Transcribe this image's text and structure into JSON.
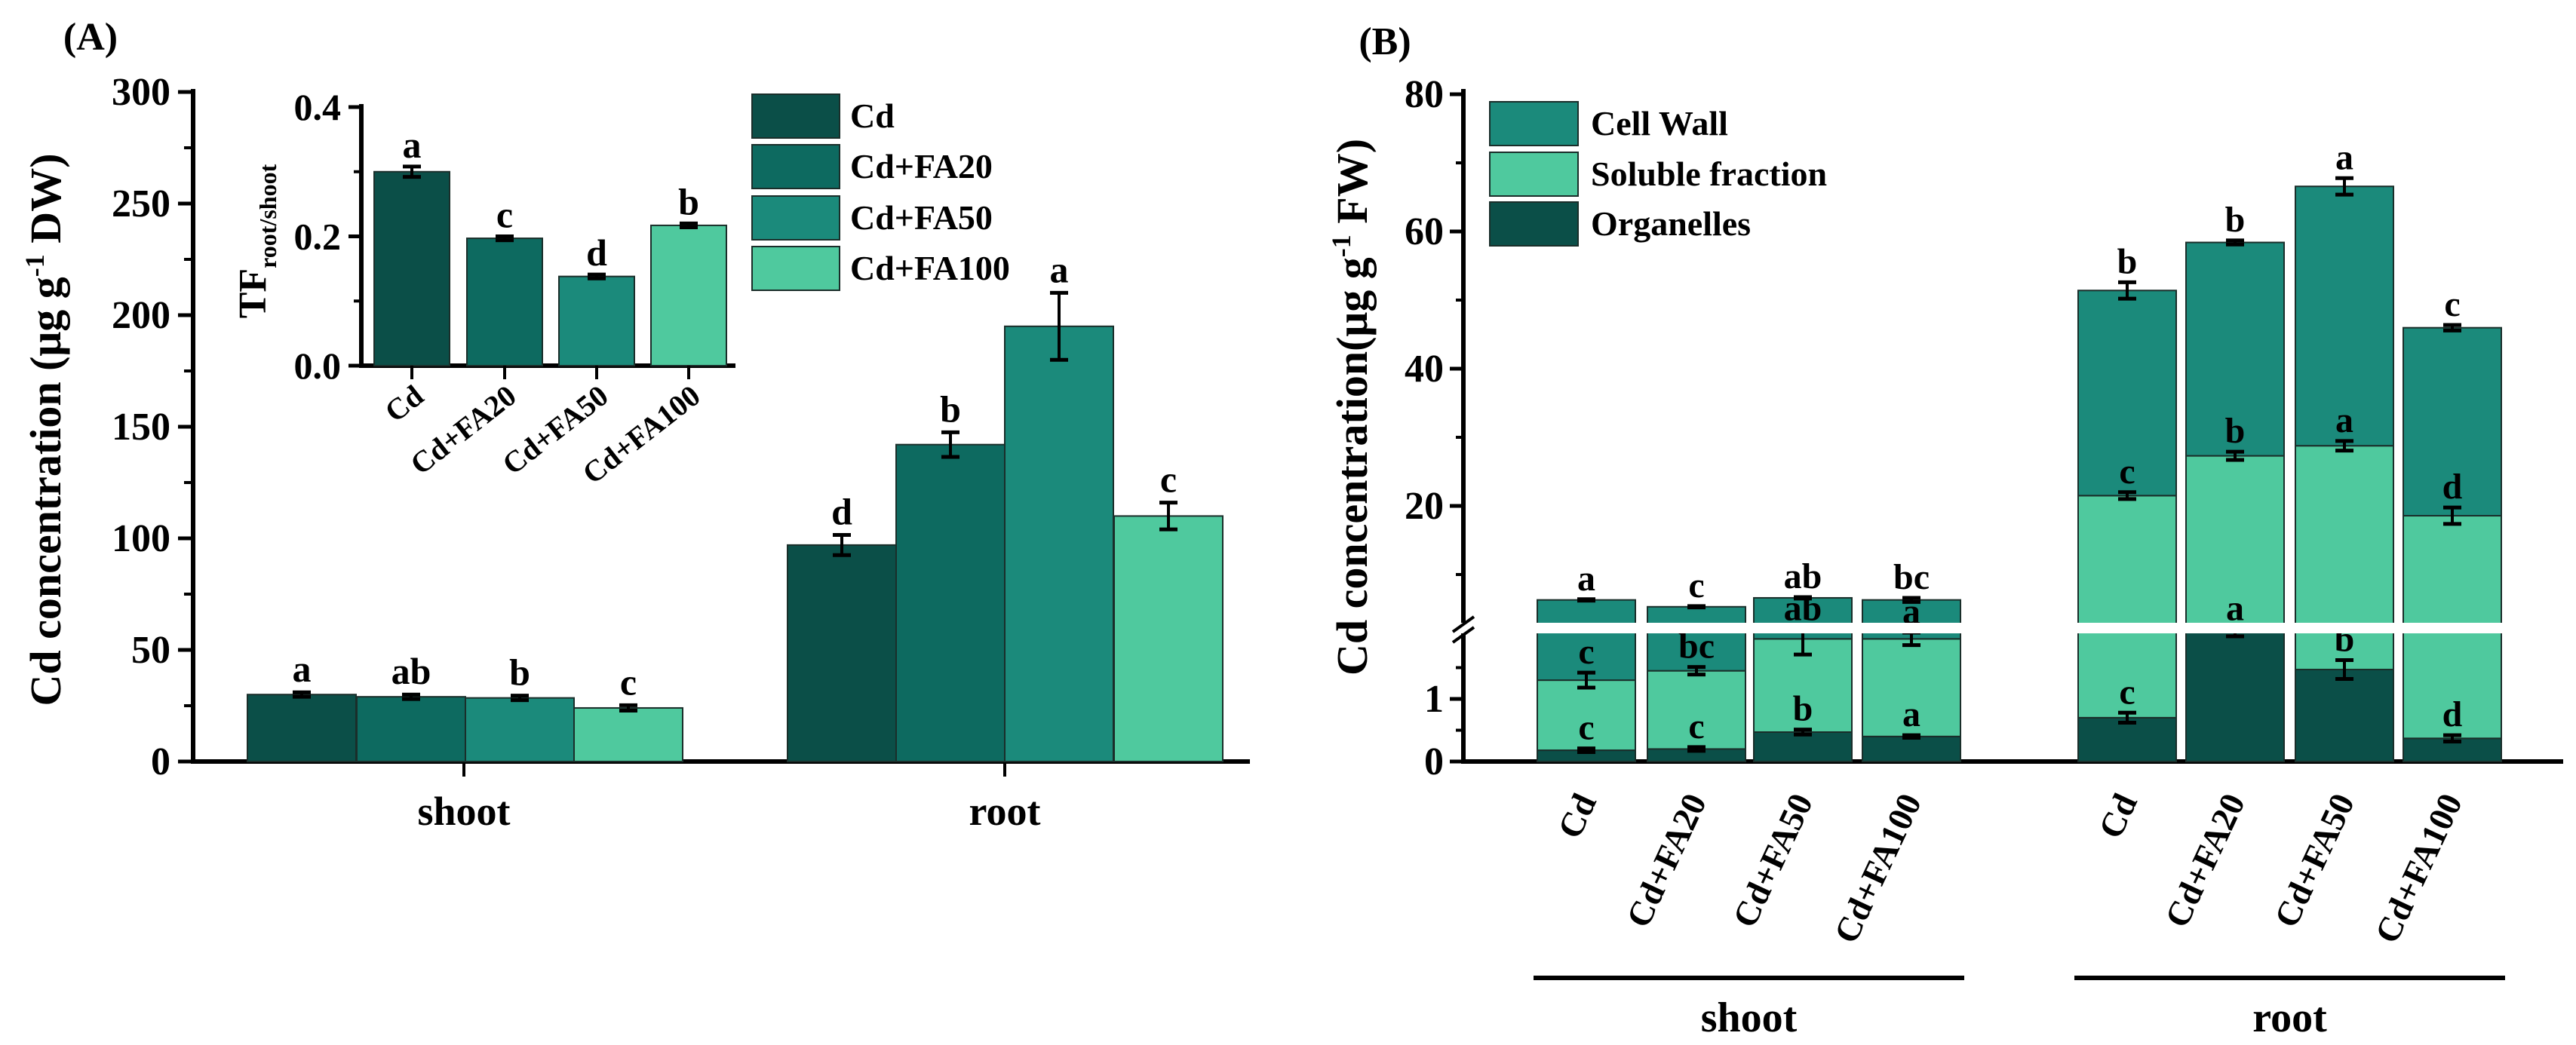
{
  "chart_data": [
    {
      "panel_label": "(A)",
      "type": "bar",
      "ylabel": {
        "main": "Cd concentration (μg g",
        "sup": "-1",
        "tail": " DW)"
      },
      "ylim": [
        0,
        300
      ],
      "yticks": [
        "0",
        "50",
        "100",
        "150",
        "200",
        "250",
        "300"
      ],
      "tick_values": [
        0,
        50,
        100,
        150,
        200,
        250,
        300
      ],
      "categories": [
        "shoot",
        "root"
      ],
      "series": [
        {
          "name": "Cd",
          "color": "#0b4f48",
          "values": [
            30,
            97
          ],
          "errors": [
            1,
            4.5
          ],
          "letters": [
            "a",
            "d"
          ]
        },
        {
          "name": "Cd+FA20",
          "color": "#0d6a60",
          "values": [
            29,
            142
          ],
          "errors": [
            1,
            5.5
          ],
          "letters": [
            "ab",
            "b"
          ]
        },
        {
          "name": "Cd+FA50",
          "color": "#1b8a7b",
          "values": [
            28.5,
            195
          ],
          "errors": [
            1,
            15
          ],
          "letters": [
            "b",
            "a"
          ]
        },
        {
          "name": "Cd+FA100",
          "color": "#4fc99e",
          "values": [
            24,
            110
          ],
          "errors": [
            1.2,
            6
          ],
          "letters": [
            "c",
            "c"
          ]
        }
      ],
      "legend": "top-right",
      "inset": {
        "type": "bar",
        "ylabel": {
          "main": "TF",
          "sub": "root/shoot"
        },
        "ylim": [
          0,
          0.4
        ],
        "yticks": [
          "0.0",
          "0.2",
          "0.4"
        ],
        "tick_values": [
          0,
          0.2,
          0.4
        ],
        "categories": [
          "Cd",
          "Cd+FA20",
          "Cd+FA50",
          "Cd+FA100"
        ],
        "values": [
          0.3,
          0.197,
          0.138,
          0.217
        ],
        "errors": [
          0.008,
          0.003,
          0.003,
          0.003
        ],
        "letters": [
          "a",
          "c",
          "d",
          "b"
        ],
        "colors": [
          "#0b4f48",
          "#0d6a60",
          "#1b8a7b",
          "#4fc99e"
        ]
      }
    },
    {
      "panel_label": "(B)",
      "type": "bar",
      "stacked": true,
      "ylabel": {
        "main": "Cd concentration(μg g",
        "sup": "-1",
        "tail": " FW)"
      },
      "y_axis_break": [
        2.1,
        3
      ],
      "ylim": [
        0,
        80
      ],
      "yticks_upper": [
        "20",
        "40",
        "60",
        "80"
      ],
      "tick_values_upper": [
        20,
        40,
        60,
        80
      ],
      "yticks_lower": [
        "0",
        "1"
      ],
      "tick_values_lower": [
        0,
        1
      ],
      "groups": [
        "shoot",
        "root"
      ],
      "categories": [
        "Cd",
        "Cd+FA20",
        "Cd+FA50",
        "Cd+FA100"
      ],
      "legend": "top-left",
      "series": [
        {
          "name": "Organelles",
          "color": "#0b4f48",
          "values": [
            [
              0.18,
              0.2,
              0.47,
              0.4
            ],
            [
              0.7,
              2.1,
              1.47,
              0.37
            ]
          ],
          "errors": [
            [
              0.03,
              0.03,
              0.04,
              0.02
            ],
            [
              0.08,
              0.1,
              0.15,
              0.05
            ]
          ],
          "letters": [
            [
              "c",
              "c",
              "b",
              "a"
            ],
            [
              "c",
              "a",
              "b",
              "d"
            ]
          ]
        },
        {
          "name": "Soluble fraction",
          "color": "#4fc99e",
          "values": [
            [
              1.12,
              1.25,
              1.49,
              1.56
            ],
            [
              20.8,
              25.2,
              27.3,
              18.2
            ]
          ],
          "errors": [
            [
              0.12,
              0.06,
              0.25,
              0.1
            ],
            [
              0.5,
              0.6,
              0.7,
              1.2
            ]
          ],
          "letters": [
            [
              "c",
              "bc",
              "ab",
              "a"
            ],
            [
              "c",
              "b",
              "a",
              "d"
            ]
          ]
        },
        {
          "name": "Cell Wall",
          "color": "#1b8a7b",
          "values": [
            [
              5.0,
              3.85,
              4.64,
              4.34
            ],
            [
              29.9,
              31.1,
              37.8,
              27.4
            ]
          ],
          "errors": [
            [
              0.1,
              0.1,
              0.1,
              0.3
            ],
            [
              1.2,
              0.3,
              1.2,
              0.4
            ]
          ],
          "letters": [
            [
              "a",
              "c",
              "ab",
              "bc"
            ],
            [
              "b",
              "b",
              "a",
              "c"
            ]
          ]
        }
      ],
      "legend_order": [
        "Cell Wall",
        "Soluble fraction",
        "Organelles"
      ]
    }
  ]
}
